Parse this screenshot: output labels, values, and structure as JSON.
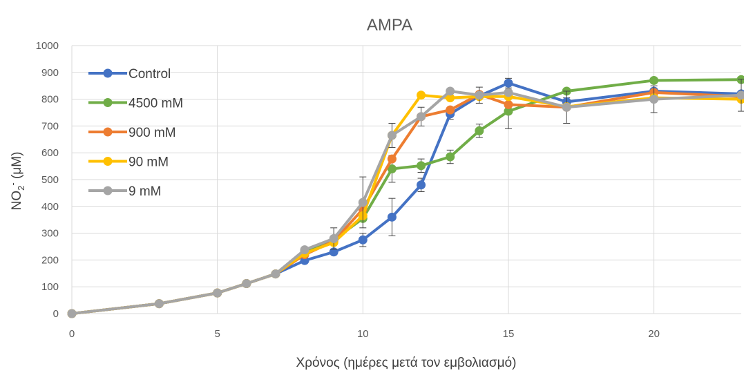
{
  "chart_data": {
    "type": "line",
    "title": "AMPA",
    "xlabel": "Χρόνος (ημέρες μετά τον εμβολιασμό)",
    "ylabel_main": "NO",
    "ylabel_sub": "2",
    "ylabel_sup": "-",
    "ylabel_unit": " (μM)",
    "xlim": [
      0,
      23
    ],
    "ylim": [
      0,
      1000
    ],
    "x_ticks": [
      "0",
      "5",
      "10",
      "15",
      "20"
    ],
    "x_tick_values": [
      0,
      5,
      10,
      15,
      20
    ],
    "y_ticks": [
      "0",
      "100",
      "200",
      "300",
      "400",
      "500",
      "600",
      "700",
      "800",
      "900",
      "1000"
    ],
    "y_tick_values": [
      0,
      100,
      200,
      300,
      400,
      500,
      600,
      700,
      800,
      900,
      1000
    ],
    "grid": true,
    "legend_position": "top-left",
    "x": [
      0,
      3,
      5,
      6,
      7,
      8,
      9,
      10,
      11,
      12,
      13,
      14,
      15,
      17,
      20,
      23
    ],
    "series": [
      {
        "name": "Control",
        "color": "#4472C4",
        "values": [
          0,
          37,
          77,
          112,
          148,
          198,
          230,
          275,
          360,
          480,
          745,
          812,
          860,
          790,
          830,
          820
        ],
        "errors": [
          0,
          0,
          0,
          0,
          0,
          0,
          0,
          25,
          70,
          25,
          20,
          0,
          18,
          15,
          0,
          0
        ]
      },
      {
        "name": "4500 mM",
        "color": "#70AD47",
        "values": [
          0,
          37,
          77,
          112,
          148,
          235,
          275,
          355,
          540,
          552,
          585,
          682,
          755,
          830,
          870,
          873
        ],
        "errors": [
          0,
          0,
          0,
          0,
          0,
          0,
          0,
          0,
          50,
          25,
          25,
          25,
          65,
          0,
          0,
          0
        ]
      },
      {
        "name": "900 mM",
        "color": "#ED7D31",
        "values": [
          0,
          37,
          77,
          112,
          148,
          220,
          270,
          390,
          577,
          735,
          760,
          818,
          780,
          770,
          825,
          810
        ],
        "errors": [
          0,
          0,
          0,
          0,
          0,
          0,
          0,
          0,
          0,
          0,
          0,
          0,
          0,
          0,
          0,
          0
        ]
      },
      {
        "name": "90 mM",
        "color": "#FFC000",
        "values": [
          0,
          37,
          77,
          112,
          148,
          225,
          265,
          365,
          665,
          815,
          805,
          810,
          810,
          772,
          805,
          800
        ],
        "errors": [
          0,
          0,
          0,
          0,
          0,
          0,
          0,
          0,
          0,
          0,
          0,
          0,
          0,
          0,
          0,
          0
        ]
      },
      {
        "name": "9 mM",
        "color": "#A5A5A5",
        "values": [
          0,
          37,
          77,
          112,
          148,
          238,
          280,
          415,
          665,
          735,
          830,
          815,
          825,
          770,
          800,
          815
        ],
        "errors": [
          0,
          0,
          0,
          0,
          0,
          0,
          40,
          95,
          45,
          35,
          0,
          30,
          0,
          60,
          50,
          60
        ]
      }
    ]
  }
}
